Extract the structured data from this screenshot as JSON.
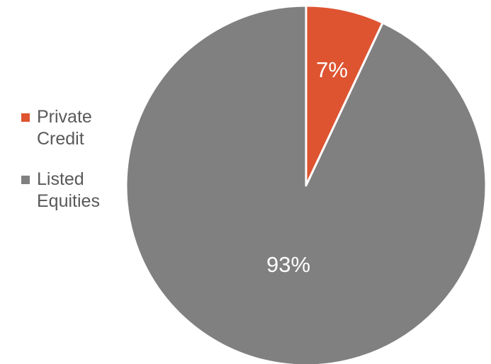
{
  "chart_data": {
    "type": "pie",
    "categories": [
      "Private Credit",
      "Listed Equities"
    ],
    "values": [
      7,
      93
    ],
    "data_labels": [
      "7%",
      "93%"
    ],
    "colors": [
      "#de5431",
      "#808080"
    ],
    "start_angle": "12 o'clock",
    "direction": "clockwise",
    "legend_position": "left",
    "label_color": "#ffffff",
    "slice_border_color": "#ffffff"
  }
}
